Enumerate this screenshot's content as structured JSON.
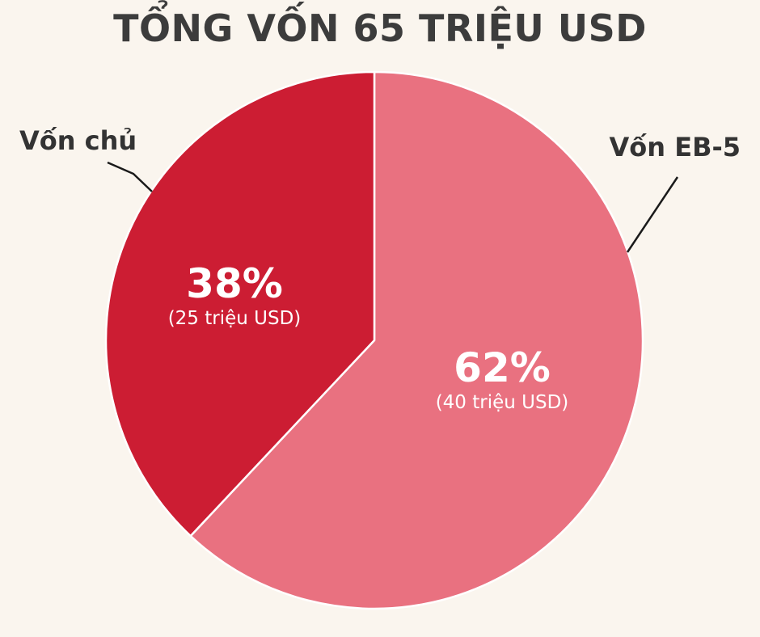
{
  "chart_data": {
    "type": "pie",
    "title": "TỔNG VỐN 65 TRIỆU USD",
    "slices": [
      {
        "name": "Vốn EB-5",
        "value": 62,
        "percent_label": "62%",
        "amount_label": "(40 triệu USD)",
        "color": "#E97180"
      },
      {
        "name": "Vốn chủ",
        "value": 38,
        "percent_label": "38%",
        "amount_label": "(25 triệu USD)",
        "color": "#CC1D33"
      }
    ]
  },
  "colors": {
    "background": "#FAF5EE",
    "title": "#3C3C3C",
    "callout_line": "#1A1A1A",
    "slice_border": "#FFFFFF"
  }
}
